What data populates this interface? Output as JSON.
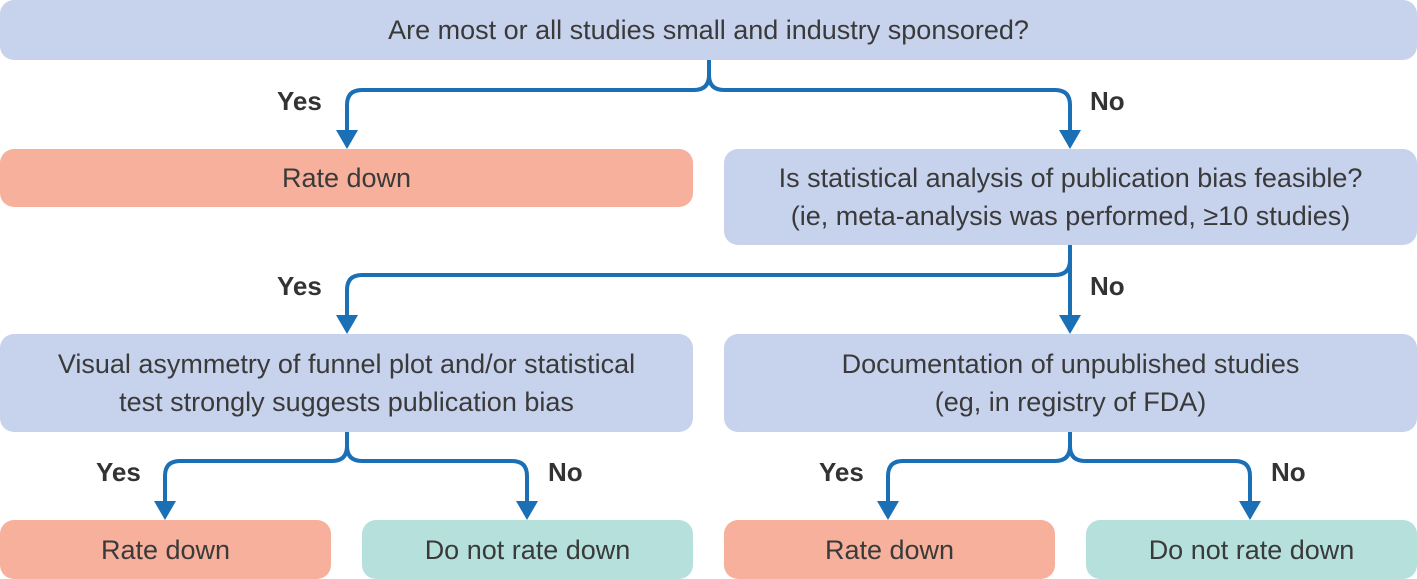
{
  "q1": {
    "text": "Are most or all studies small and industry sponsored?"
  },
  "q1_yes": {
    "label": "Yes",
    "outcome": "Rate down"
  },
  "q1_no": {
    "label": "No"
  },
  "q2": {
    "line1": "Is statistical analysis of publication bias feasible?",
    "line2": "(ie, meta-analysis was performed, ≥10 studies)"
  },
  "q2_yes": {
    "label": "Yes"
  },
  "q2_no": {
    "label": "No"
  },
  "q3": {
    "line1": "Visual asymmetry of funnel plot and/or statistical",
    "line2": "test strongly suggests publication bias"
  },
  "q3_yes": {
    "label": "Yes",
    "outcome": "Rate down"
  },
  "q3_no": {
    "label": "No",
    "outcome": "Do not rate down"
  },
  "q4": {
    "line1": "Documentation of unpublished studies",
    "line2": "(eg, in registry of FDA)"
  },
  "q4_yes": {
    "label": "Yes",
    "outcome": "Rate down"
  },
  "q4_no": {
    "label": "No",
    "outcome": "Do not rate down"
  },
  "colors": {
    "question": "#c7d2ec",
    "rate_down": "#f6b09c",
    "do_not_rate_down": "#b6e0dc",
    "arrow": "#1a6fb5"
  }
}
